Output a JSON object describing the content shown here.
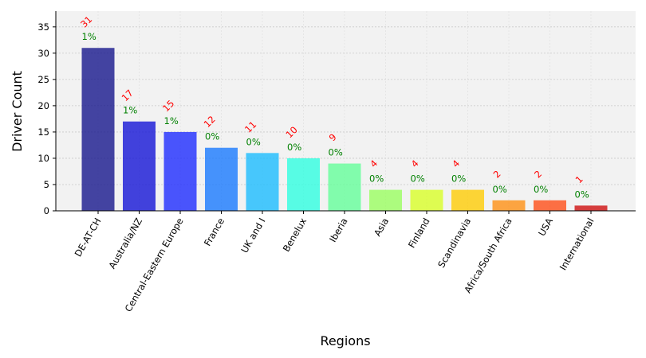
{
  "chart_data": {
    "type": "bar",
    "title": "",
    "xlabel": "Regions",
    "ylabel": "Driver Count",
    "ylim": [
      0,
      38
    ],
    "yticks": [
      0,
      5,
      10,
      15,
      20,
      25,
      30,
      35
    ],
    "grid": true,
    "categories": [
      "DE-AT-CH",
      "Australia/NZ",
      "Central-Eastern Europe",
      "France",
      "UK and I",
      "Benelux",
      "Iberia",
      "Asia",
      "Finland",
      "Scandinavia",
      "Africa/South Africa",
      "USA",
      "International"
    ],
    "values": [
      31,
      17,
      15,
      12,
      11,
      10,
      9,
      4,
      4,
      4,
      2,
      2,
      1
    ],
    "count_labels": [
      "31",
      "17",
      "15",
      "12",
      "11",
      "10",
      "9",
      "4",
      "4",
      "4",
      "2",
      "2",
      "1"
    ],
    "percent_labels": [
      "1%",
      "1%",
      "1%",
      "0%",
      "0%",
      "0%",
      "0%",
      "0%",
      "0%",
      "0%",
      "0%",
      "0%",
      "0%"
    ],
    "colors": [
      "#12128a",
      "#0f0fd6",
      "#1a28ff",
      "#1577ff",
      "#17bbff",
      "#2cffe0",
      "#62ff99",
      "#99ff5e",
      "#d8ff24",
      "#ffcc00",
      "#ff8e0f",
      "#ff4a13",
      "#cd0a0a"
    ],
    "count_label_color": "#ff0000",
    "percent_label_color": "#008000",
    "plot_background": "#f2f2f2"
  }
}
